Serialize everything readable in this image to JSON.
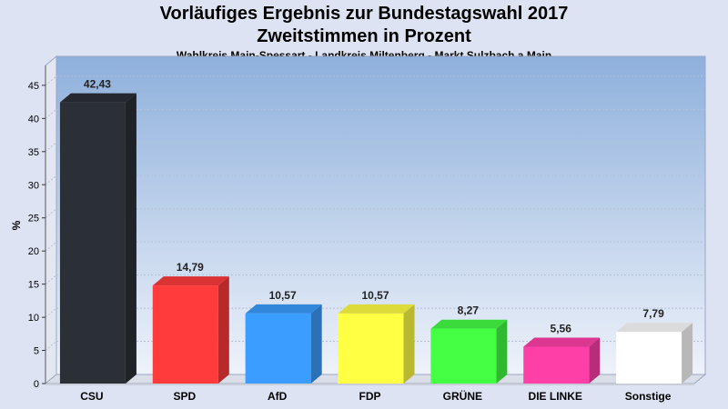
{
  "chart_data": {
    "type": "bar",
    "title": "Vorläufiges Ergebnis zur Bundestagswahl 2017",
    "subtitle": "Zweitstimmen in Prozent",
    "subsubtitle": "Wahlkreis Main-Spessart - Landkreis Miltenberg - Markt Sulzbach a.Main",
    "ylabel": "%",
    "ylim": [
      0,
      48
    ],
    "yticks": [
      0,
      5,
      10,
      15,
      20,
      25,
      30,
      35,
      40,
      45
    ],
    "grid": true,
    "categories": [
      "CSU",
      "SPD",
      "AfD",
      "FDP",
      "GRÜNE",
      "DIE LINKE",
      "Sonstige"
    ],
    "values": [
      42.43,
      14.79,
      10.57,
      10.57,
      8.27,
      5.56,
      7.79
    ],
    "value_labels": [
      "42,43",
      "14,79",
      "10,57",
      "10,57",
      "8,27",
      "5,56",
      "7,79"
    ],
    "colors": [
      "#2b2f36",
      "#ff3b3b",
      "#3a9dff",
      "#ffff44",
      "#44ff44",
      "#ff3fa8",
      "#ffffff"
    ]
  }
}
